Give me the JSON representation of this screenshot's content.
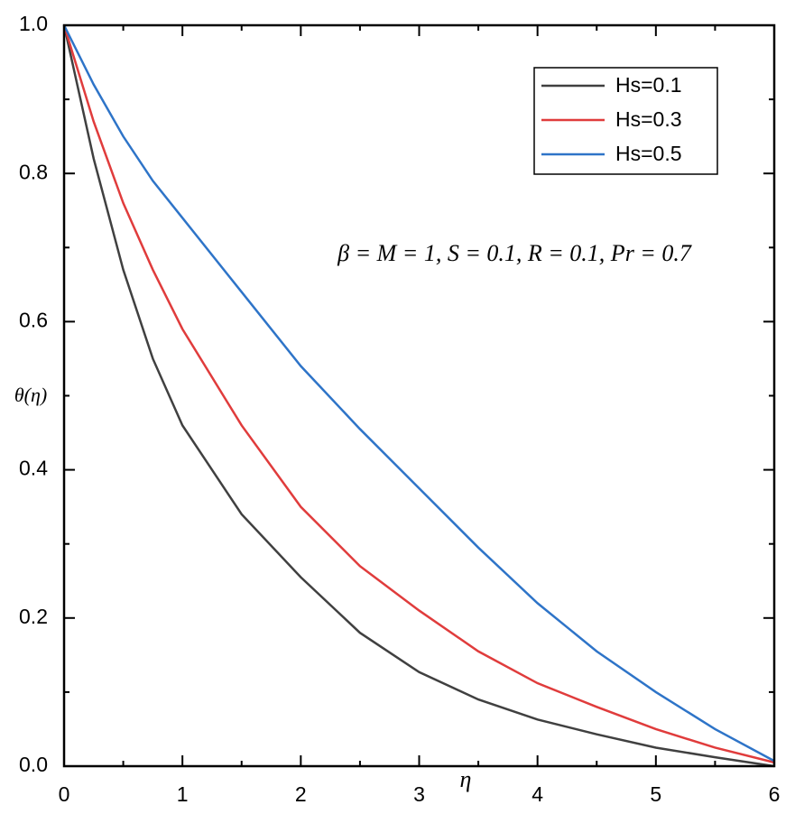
{
  "chart_data": {
    "type": "line",
    "xlabel": "η",
    "ylabel": "θ(η)",
    "annotation": "β = M = 1, S = 0.1, R = 0.1, Pr = 0.7",
    "x": [
      0,
      0.25,
      0.5,
      0.75,
      1,
      1.5,
      2,
      2.5,
      3,
      3.5,
      4,
      4.5,
      5,
      5.5,
      6
    ],
    "series": [
      {
        "name": "Hs=0.1",
        "color": "#404040",
        "values": [
          1,
          0.82,
          0.67,
          0.55,
          0.46,
          0.34,
          0.255,
          0.18,
          0.127,
          0.09,
          0.063,
          0.043,
          0.025,
          0.012,
          0
        ]
      },
      {
        "name": "Hs=0.3",
        "color": "#e03c3c",
        "values": [
          1,
          0.87,
          0.76,
          0.67,
          0.59,
          0.46,
          0.35,
          0.27,
          0.21,
          0.155,
          0.112,
          0.08,
          0.05,
          0.025,
          0.005
        ]
      },
      {
        "name": "Hs=0.5",
        "color": "#2e74c8",
        "values": [
          1,
          0.92,
          0.85,
          0.79,
          0.74,
          0.64,
          0.54,
          0.455,
          0.375,
          0.295,
          0.22,
          0.155,
          0.1,
          0.05,
          0.007
        ]
      }
    ],
    "xlim": [
      0,
      6
    ],
    "xticks": [
      0,
      1,
      2,
      3,
      4,
      5,
      6
    ],
    "ylim": [
      0,
      1
    ],
    "yticks": [
      {
        "value": 0,
        "label": "0.0"
      },
      0.2,
      0.4,
      0.6,
      0.8,
      {
        "value": 1,
        "label": "1.0"
      }
    ],
    "legend": "upper right",
    "grid": false
  }
}
